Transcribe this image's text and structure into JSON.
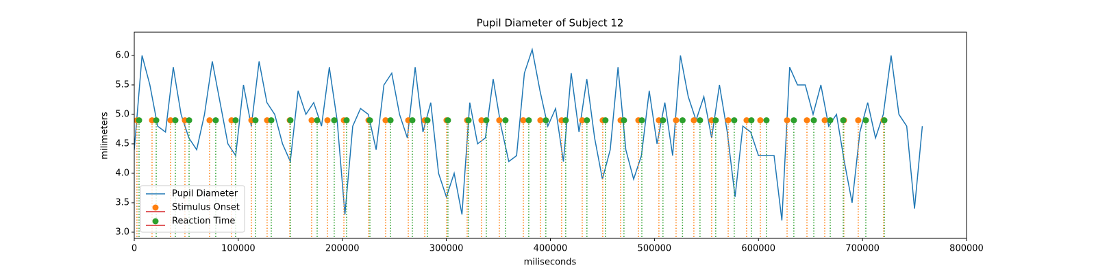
{
  "chart_data": {
    "type": "line",
    "title": "Pupil Diameter of Subject 12",
    "x_label": "miliseconds",
    "y_label": "milimeters",
    "xlim": [
      0,
      800000
    ],
    "ylim": [
      2.895,
      6.395
    ],
    "xticks": [
      0,
      100000,
      200000,
      300000,
      400000,
      500000,
      600000,
      700000,
      800000
    ],
    "yticks": [
      {
        "value": 3,
        "label": "3.0"
      },
      {
        "value": 3.5,
        "label": "3.5"
      },
      {
        "value": 4,
        "label": "4.0"
      },
      {
        "value": 4.5,
        "label": "4.5"
      },
      {
        "value": 5,
        "label": "5.0"
      },
      {
        "value": 5.5,
        "label": "5.5"
      },
      {
        "value": 6,
        "label": "6.0"
      }
    ],
    "legend": "lower left",
    "series": [
      {
        "name": "Pupil Diameter",
        "type": "line",
        "color": "#1f77b4",
        "x": [
          0,
          7500,
          15000,
          22500,
          30000,
          37500,
          45000,
          52500,
          60000,
          67500,
          75000,
          82500,
          90000,
          97500,
          105000,
          112500,
          120000,
          127500,
          135000,
          142500,
          150000,
          157500,
          165000,
          172500,
          180000,
          187500,
          195000,
          202500,
          210000,
          217500,
          225000,
          232500,
          240000,
          247500,
          255000,
          262500,
          270000,
          277500,
          285000,
          292500,
          300000,
          307500,
          315000,
          322500,
          330000,
          337500,
          345000,
          352500,
          360000,
          367500,
          375000,
          382500,
          390000,
          397500,
          405000,
          412500,
          420000,
          427500,
          435000,
          442500,
          450000,
          457500,
          465000,
          472500,
          480000,
          487500,
          495000,
          502500,
          510000,
          517500,
          525000,
          532500,
          540000,
          547500,
          555000,
          562500,
          570000,
          577500,
          585000,
          592500,
          600000,
          607500,
          615000,
          622500,
          630000,
          637500,
          645000,
          652500,
          660000,
          667500,
          675000,
          682500,
          690000,
          697500,
          705000,
          712500,
          720000,
          727500,
          735000,
          742500,
          750000,
          757500
        ],
        "values": [
          4.4,
          6.0,
          5.5,
          4.8,
          4.7,
          5.8,
          5.0,
          4.6,
          4.4,
          5.0,
          5.9,
          5.2,
          4.5,
          4.3,
          5.5,
          4.8,
          5.9,
          5.2,
          5.0,
          4.5,
          4.2,
          5.4,
          5.0,
          5.2,
          4.8,
          5.8,
          4.9,
          3.3,
          4.8,
          5.1,
          5.0,
          4.4,
          5.5,
          5.7,
          5.0,
          4.6,
          5.8,
          4.7,
          5.2,
          4.0,
          3.6,
          4.0,
          3.3,
          5.2,
          4.5,
          4.6,
          5.6,
          4.8,
          4.2,
          4.3,
          5.7,
          6.1,
          5.4,
          4.8,
          5.1,
          4.2,
          5.7,
          4.7,
          5.6,
          4.6,
          3.9,
          4.4,
          5.8,
          4.4,
          3.9,
          4.3,
          5.4,
          4.5,
          5.2,
          4.3,
          6.0,
          5.3,
          4.9,
          5.3,
          4.6,
          5.5,
          4.7,
          3.6,
          4.8,
          4.7,
          4.3,
          4.3,
          4.3,
          3.2,
          5.8,
          5.5,
          5.5,
          5.0,
          5.5,
          4.8,
          5.0,
          4.2,
          3.5,
          4.7,
          5.2,
          4.6,
          5.0,
          6.0,
          5.0,
          4.8,
          3.4,
          4.8
        ]
      },
      {
        "name": "Stimulus Onset",
        "type": "stem",
        "color": "#ff7f0e",
        "x": [
          2600,
          17100,
          34900,
          48700,
          72400,
          93500,
          112600,
          127700,
          149500,
          170500,
          185700,
          201500,
          225200,
          241600,
          263400,
          279200,
          300200,
          320000,
          333800,
          350900,
          374000,
          390400,
          410800,
          430600,
          450300,
          467500,
          484600,
          504300,
          520800,
          537900,
          555000,
          570900,
          588600,
          601800,
          627500,
          646600,
          663700,
          682100,
          695900,
          720300
        ],
        "values": [
          4.9,
          4.9,
          4.9,
          4.9,
          4.9,
          4.9,
          4.9,
          4.9,
          4.9,
          4.9,
          4.9,
          4.9,
          4.9,
          4.9,
          4.9,
          4.9,
          4.9,
          4.9,
          4.9,
          4.9,
          4.9,
          4.9,
          4.9,
          4.9,
          4.9,
          4.9,
          4.9,
          4.9,
          4.9,
          4.9,
          4.9,
          4.9,
          4.9,
          4.9,
          4.9,
          4.9,
          4.9,
          4.9,
          4.9,
          4.9
        ]
      },
      {
        "name": "Reaction Time",
        "type": "stem",
        "color": "#2ca02c",
        "x": [
          4600,
          21100,
          39500,
          52700,
          78300,
          97400,
          116500,
          131700,
          150100,
          175800,
          192200,
          204100,
          226500,
          246300,
          267300,
          281800,
          301500,
          321300,
          338400,
          356800,
          379200,
          395600,
          414700,
          435100,
          452900,
          470700,
          487900,
          508200,
          527000,
          543800,
          558900,
          576700,
          593200,
          607700,
          634000,
          653200,
          669000,
          681500,
          703200,
          721000
        ],
        "values": [
          4.9,
          4.9,
          4.9,
          4.9,
          4.9,
          4.9,
          4.9,
          4.9,
          4.9,
          4.9,
          4.9,
          4.9,
          4.9,
          4.9,
          4.9,
          4.9,
          4.9,
          4.9,
          4.9,
          4.9,
          4.9,
          4.9,
          4.9,
          4.9,
          4.9,
          4.9,
          4.9,
          4.9,
          4.9,
          4.9,
          4.9,
          4.9,
          4.9,
          4.9,
          4.9,
          4.9,
          4.9,
          4.9,
          4.9,
          4.9
        ]
      }
    ]
  }
}
